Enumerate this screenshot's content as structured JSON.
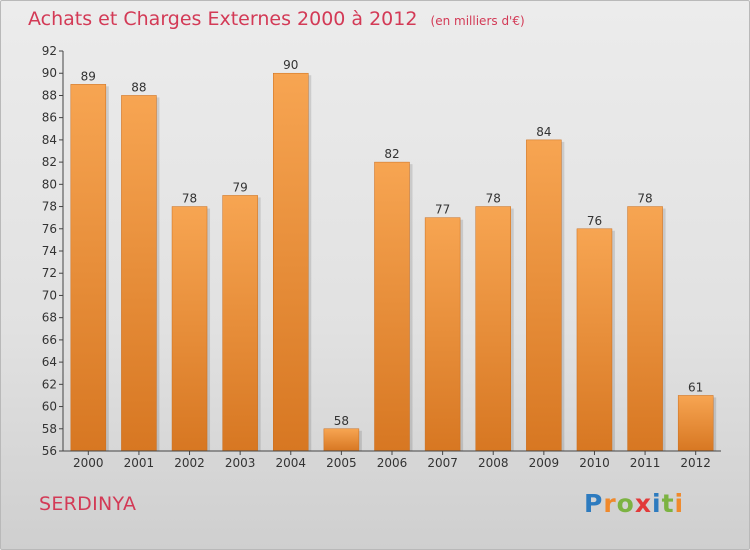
{
  "title": {
    "main": "Achats et Charges Externes 2000 à 2012",
    "unit": "(en milliers d'€)"
  },
  "commune": "SERDINYA",
  "logo": {
    "text": "Proxiti",
    "letters": [
      "P",
      "r",
      "o",
      "x",
      "i",
      "t",
      "i"
    ],
    "colors": [
      "#2d7bbf",
      "#f0892b",
      "#7cb342",
      "#e23a3a",
      "#2d7bbf",
      "#7cb342",
      "#f0892b"
    ]
  },
  "colors": {
    "bar_top": "#f7a552",
    "bar_bottom": "#d77722",
    "title": "#d33a56",
    "axis": "#444444"
  },
  "chart_data": {
    "type": "bar",
    "categories": [
      "2000",
      "2001",
      "2002",
      "2003",
      "2004",
      "2005",
      "2006",
      "2007",
      "2008",
      "2009",
      "2010",
      "2011",
      "2012"
    ],
    "values": [
      89,
      88,
      78,
      79,
      90,
      58,
      82,
      77,
      78,
      84,
      76,
      78,
      61
    ],
    "ylim": [
      56,
      92
    ],
    "yticks": [
      56,
      58,
      60,
      62,
      64,
      66,
      68,
      70,
      72,
      74,
      76,
      78,
      80,
      82,
      84,
      86,
      88,
      90,
      92
    ],
    "grid": false,
    "data_labels": true
  }
}
